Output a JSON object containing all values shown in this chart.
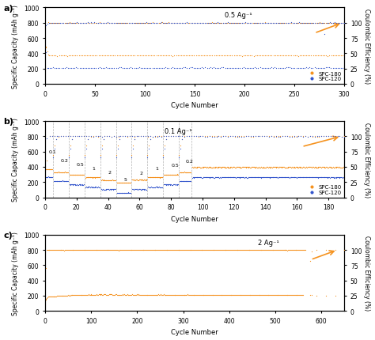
{
  "panel_a": {
    "title": "0.5 Ag⁻¹",
    "xlabel": "Cycle Number",
    "ylabel": "Specific Capacity (mAh g⁻¹)",
    "ylabel_right": "Coulombic Efficiency (%)",
    "xlim": [
      0,
      300
    ],
    "ylim_left": [
      0,
      1000
    ],
    "ylim_right": [
      0,
      125
    ],
    "yticks_left": [
      0,
      200,
      400,
      600,
      800,
      1000
    ],
    "yticks_right": [
      0,
      25,
      50,
      75,
      100
    ],
    "xticks": [
      0,
      50,
      100,
      150,
      200,
      250,
      300
    ],
    "color_180": "#f5921e",
    "color_120": "#3355cc",
    "label_180": "SPC-180",
    "label_120": "SPC-120"
  },
  "panel_b": {
    "title": "0.1 Ag⁻¹",
    "xlabel": "Cycle Number",
    "ylabel": "Specific Capacity (mAh g⁻¹)",
    "ylabel_right": "Coulombic Efficiency (%)",
    "xlim": [
      0,
      190
    ],
    "ylim_left": [
      0,
      1000
    ],
    "ylim_right": [
      0,
      125
    ],
    "yticks_left": [
      0,
      200,
      400,
      600,
      800,
      1000
    ],
    "yticks_right": [
      0,
      25,
      50,
      75,
      100
    ],
    "xticks": [
      0,
      20,
      40,
      60,
      80,
      100,
      120,
      140,
      160,
      180
    ],
    "rate_labels": [
      "0.1",
      "0.2",
      "0.5",
      "1",
      "2",
      "5",
      "2",
      "1",
      "0.5",
      "0.2"
    ],
    "rate_x_pos": [
      2.5,
      10,
      20,
      30,
      40,
      50,
      60,
      70,
      80,
      89
    ],
    "rate_y_pos": [
      580,
      460,
      410,
      360,
      310,
      215,
      300,
      355,
      400,
      450
    ],
    "vline_x": [
      5,
      15,
      25,
      35,
      45,
      55,
      65,
      75,
      85,
      93
    ],
    "color_180": "#f5921e",
    "color_120": "#3355cc",
    "label_180": "SPC-180",
    "label_120": "SPC-120"
  },
  "panel_c": {
    "title": "2 Ag⁻¹",
    "xlabel": "Cycle Number",
    "ylabel": "Specific Capacity (mAh g⁻¹)",
    "ylabel_right": "Coulombic Efficiency (%)",
    "xlim": [
      0,
      650
    ],
    "ylim_left": [
      0,
      1000
    ],
    "ylim_right": [
      0,
      125
    ],
    "yticks_left": [
      0,
      200,
      400,
      600,
      800,
      1000
    ],
    "yticks_right": [
      0,
      25,
      50,
      75,
      100
    ],
    "xticks": [
      0,
      100,
      200,
      300,
      400,
      500,
      600
    ],
    "color_180": "#f5921e"
  }
}
